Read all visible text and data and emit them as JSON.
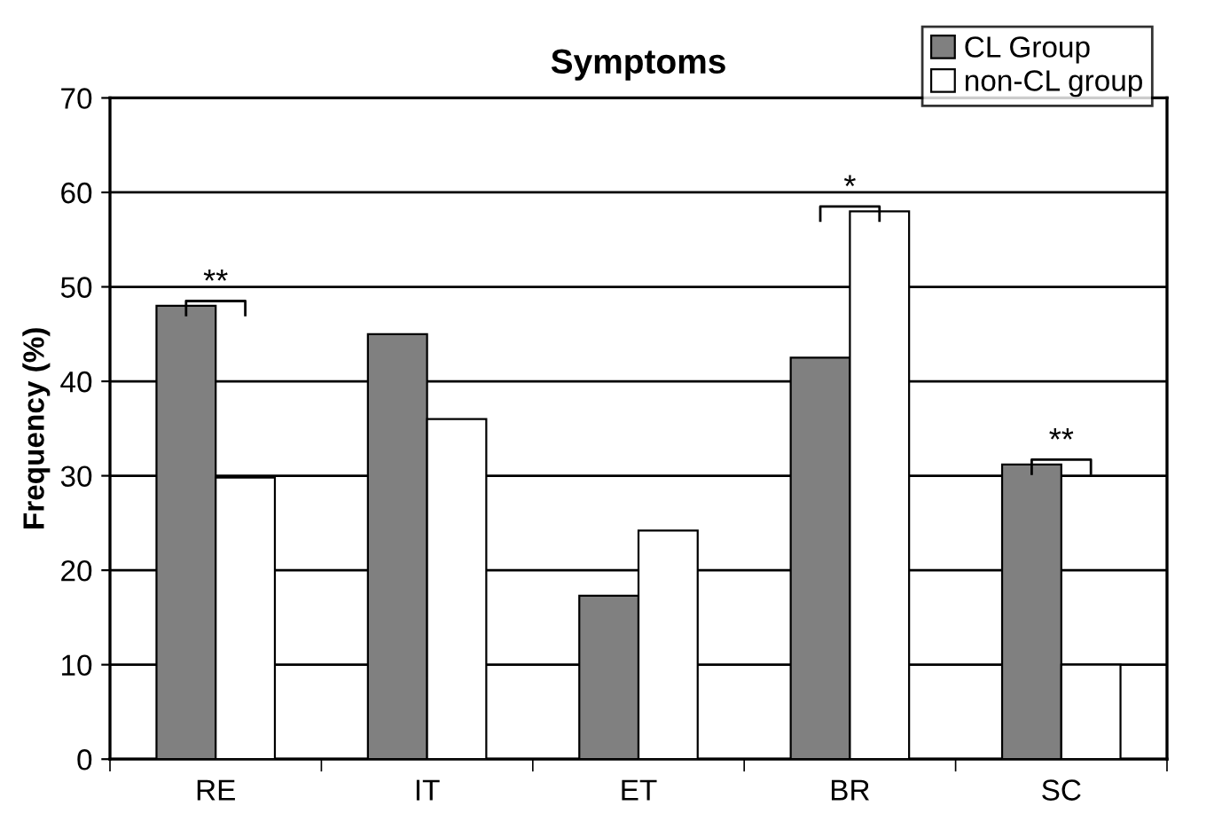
{
  "chart_data": {
    "type": "bar",
    "title": "Symptoms",
    "ylabel": "Frequency (%)",
    "categories": [
      "RE",
      "IT",
      "ET",
      "BR",
      "SC"
    ],
    "series": [
      {
        "name": "CL Group",
        "color": "#808080",
        "values": [
          48,
          45,
          17.3,
          42.5,
          31.2
        ]
      },
      {
        "name": "non-CL group",
        "color": "#ffffff",
        "values": [
          29.8,
          36,
          24.2,
          58,
          10
        ]
      }
    ],
    "ylim": [
      0,
      70
    ],
    "yticks": [
      0,
      10,
      20,
      30,
      40,
      50,
      60,
      70
    ],
    "grid": "y",
    "legend": "top right",
    "annotations": [
      {
        "text": "**",
        "x": "RE",
        "y": 48
      },
      {
        "text": "*",
        "x": "BR",
        "y": 58
      },
      {
        "text": "**",
        "x": "SC",
        "y": 31.2
      }
    ]
  }
}
